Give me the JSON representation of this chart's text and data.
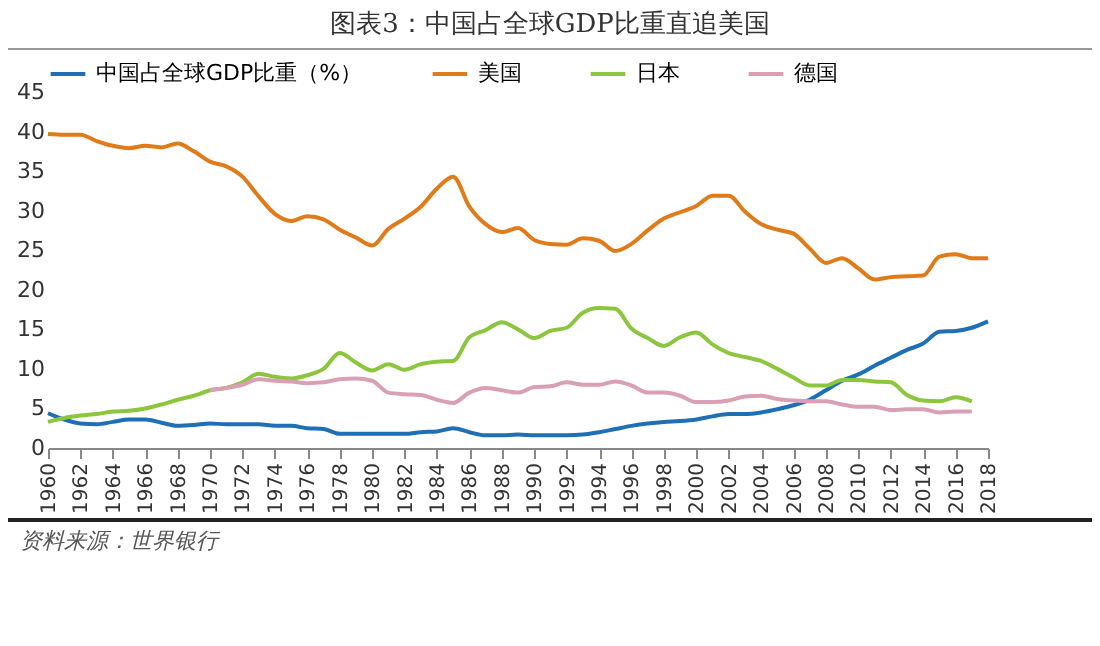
{
  "chart_data": {
    "type": "line",
    "title": "图表3：中国占全球GDP比重直追美国",
    "annotations": [
      "资料来源：世界银行"
    ],
    "xlim": [
      1960,
      2018
    ],
    "xticks": [
      1960,
      1962,
      1964,
      1966,
      1968,
      1970,
      1972,
      1974,
      1976,
      1978,
      1980,
      1982,
      1984,
      1986,
      1988,
      1990,
      1992,
      1994,
      1996,
      1998,
      2000,
      2002,
      2004,
      2006,
      2008,
      2010,
      2012,
      2014,
      2016,
      2018
    ],
    "ylim": [
      0,
      45
    ],
    "yticks": [
      0,
      5,
      10,
      15,
      20,
      25,
      30,
      35,
      40,
      45
    ],
    "grid": false,
    "legend": "top",
    "series": [
      {
        "name": "中国占全球GDP比重（%）",
        "color": "#1f6fb4",
        "x": [
          1960,
          1961,
          1962,
          1963,
          1964,
          1965,
          1966,
          1967,
          1968,
          1969,
          1970,
          1971,
          1972,
          1973,
          1974,
          1975,
          1976,
          1977,
          1978,
          1979,
          1980,
          1981,
          1982,
          1983,
          1984,
          1985,
          1986,
          1987,
          1988,
          1989,
          1990,
          1991,
          1992,
          1993,
          1994,
          1995,
          1996,
          1997,
          1998,
          1999,
          2000,
          2001,
          2002,
          2003,
          2004,
          2005,
          2006,
          2007,
          2008,
          2009,
          2010,
          2011,
          2012,
          2013,
          2014,
          2015,
          2016,
          2017,
          2018
        ],
        "values": [
          4.4,
          3.6,
          3.1,
          3.0,
          3.3,
          3.6,
          3.6,
          3.2,
          2.8,
          2.9,
          3.1,
          3.0,
          3.0,
          3.0,
          2.8,
          2.8,
          2.5,
          2.4,
          1.8,
          1.8,
          1.8,
          1.8,
          1.8,
          2.0,
          2.1,
          2.5,
          2.0,
          1.6,
          1.6,
          1.7,
          1.6,
          1.6,
          1.6,
          1.7,
          2.0,
          2.4,
          2.8,
          3.1,
          3.3,
          3.4,
          3.6,
          4.0,
          4.3,
          4.3,
          4.5,
          4.9,
          5.4,
          6.1,
          7.3,
          8.5,
          9.3,
          10.4,
          11.4,
          12.4,
          13.2,
          14.7,
          14.8,
          15.2,
          16.0
        ]
      },
      {
        "name": "美国",
        "color": "#e07b1a",
        "x": [
          1960,
          1961,
          1962,
          1963,
          1964,
          1965,
          1966,
          1967,
          1968,
          1969,
          1970,
          1971,
          1972,
          1973,
          1974,
          1975,
          1976,
          1977,
          1978,
          1979,
          1980,
          1981,
          1982,
          1983,
          1984,
          1985,
          1986,
          1987,
          1988,
          1989,
          1990,
          1991,
          1992,
          1993,
          1994,
          1995,
          1996,
          1997,
          1998,
          1999,
          2000,
          2001,
          2002,
          2003,
          2004,
          2005,
          2006,
          2007,
          2008,
          2009,
          2010,
          2011,
          2012,
          2013,
          2014,
          2015,
          2016,
          2017,
          2018
        ],
        "values": [
          39.7,
          39.6,
          39.6,
          38.8,
          38.2,
          37.9,
          38.2,
          38.0,
          38.5,
          37.5,
          36.2,
          35.6,
          34.3,
          31.8,
          29.6,
          28.7,
          29.3,
          28.9,
          27.6,
          26.6,
          25.6,
          27.7,
          29.0,
          30.5,
          32.8,
          34.3,
          30.5,
          28.3,
          27.3,
          27.8,
          26.3,
          25.8,
          25.7,
          26.5,
          26.2,
          24.9,
          25.8,
          27.5,
          29.0,
          29.8,
          30.6,
          31.9,
          31.9,
          29.9,
          28.3,
          27.6,
          27.1,
          25.2,
          23.4,
          24.0,
          22.7,
          21.3,
          21.6,
          21.7,
          21.8,
          24.2,
          24.5,
          24.0,
          24.0
        ]
      },
      {
        "name": "日本",
        "color": "#8cc63f",
        "x": [
          1960,
          1961,
          1962,
          1963,
          1964,
          1965,
          1966,
          1967,
          1968,
          1969,
          1970,
          1971,
          1972,
          1973,
          1974,
          1975,
          1976,
          1977,
          1978,
          1979,
          1980,
          1981,
          1982,
          1983,
          1984,
          1985,
          1986,
          1987,
          1988,
          1989,
          1990,
          1991,
          1992,
          1993,
          1994,
          1995,
          1996,
          1997,
          1998,
          1999,
          2000,
          2001,
          2002,
          2003,
          2004,
          2005,
          2006,
          2007,
          2008,
          2009,
          2010,
          2011,
          2012,
          2013,
          2014,
          2015,
          2016,
          2017
        ],
        "values": [
          3.3,
          3.8,
          4.1,
          4.3,
          4.6,
          4.7,
          5.0,
          5.5,
          6.1,
          6.6,
          7.3,
          7.6,
          8.3,
          9.4,
          9.0,
          8.8,
          9.2,
          10.0,
          12.0,
          10.8,
          9.8,
          10.6,
          9.9,
          10.6,
          10.9,
          11.0,
          14.0,
          14.9,
          15.9,
          15.0,
          13.9,
          14.8,
          15.2,
          17.1,
          17.7,
          17.6,
          15.1,
          13.9,
          12.9,
          14.0,
          14.6,
          13.1,
          12.0,
          11.5,
          11.0,
          10.0,
          8.9,
          7.9,
          7.9,
          8.6,
          8.6,
          8.4,
          8.3,
          6.7,
          6.0,
          5.9,
          6.4,
          5.9
        ]
      },
      {
        "name": "德国",
        "color": "#d9a0b5",
        "x": [
          1970,
          1971,
          1972,
          1973,
          1974,
          1975,
          1976,
          1977,
          1978,
          1979,
          1980,
          1981,
          1982,
          1983,
          1984,
          1985,
          1986,
          1987,
          1988,
          1989,
          1990,
          1991,
          1992,
          1993,
          1994,
          1995,
          1996,
          1997,
          1998,
          1999,
          2000,
          2001,
          2002,
          2003,
          2004,
          2005,
          2006,
          2007,
          2008,
          2009,
          2010,
          2011,
          2012,
          2013,
          2014,
          2015,
          2016,
          2017
        ],
        "values": [
          7.3,
          7.6,
          8.0,
          8.7,
          8.5,
          8.4,
          8.2,
          8.3,
          8.7,
          8.8,
          8.5,
          7.0,
          6.8,
          6.7,
          6.1,
          5.7,
          7.0,
          7.6,
          7.3,
          7.0,
          7.7,
          7.8,
          8.3,
          8.0,
          8.0,
          8.4,
          7.9,
          7.0,
          7.0,
          6.6,
          5.8,
          5.8,
          6.0,
          6.5,
          6.6,
          6.2,
          6.0,
          5.9,
          5.9,
          5.5,
          5.2,
          5.2,
          4.8,
          4.9,
          4.9,
          4.5,
          4.6,
          4.6
        ]
      }
    ]
  }
}
